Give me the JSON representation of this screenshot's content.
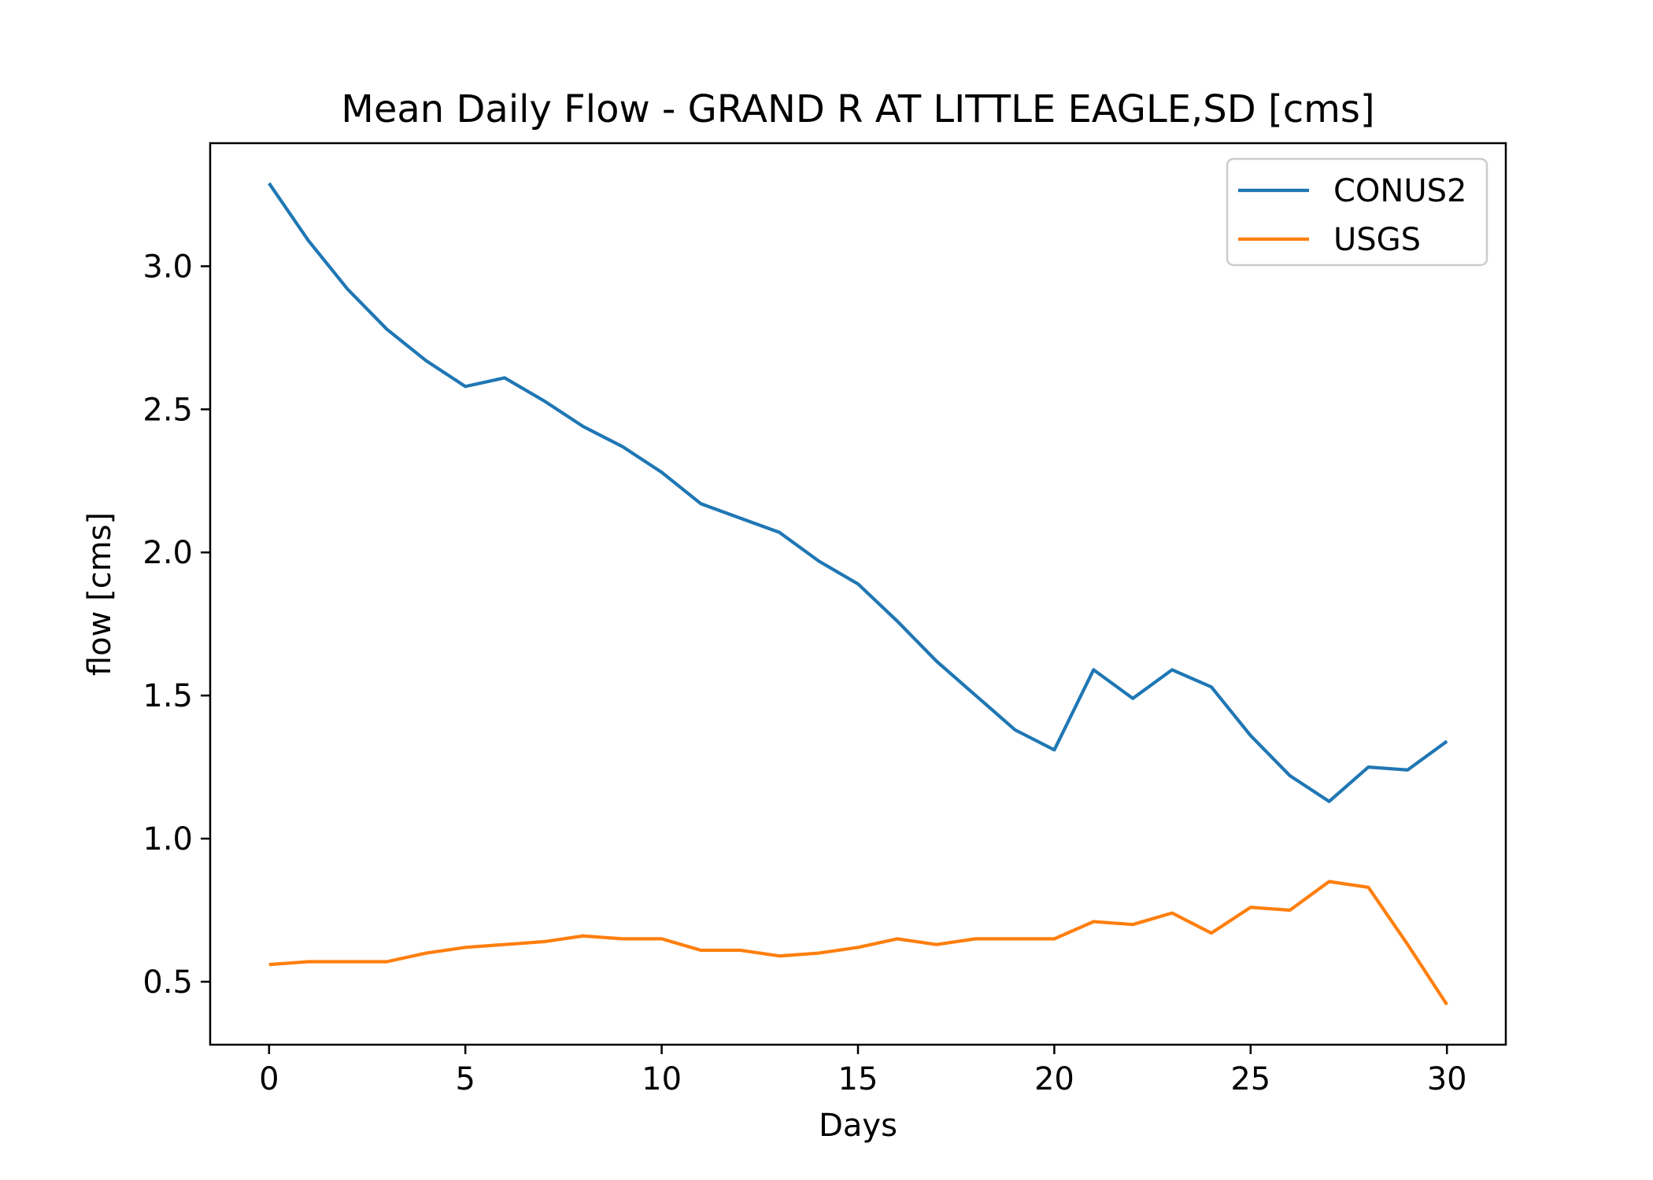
{
  "chart_data": {
    "type": "line",
    "title": "Mean Daily Flow - GRAND R AT LITTLE EAGLE,SD [cms]",
    "xlabel": "Days",
    "ylabel": "flow [cms]",
    "xlim": [
      -1.5,
      31.5
    ],
    "ylim": [
      0.28,
      3.43
    ],
    "xticks": [
      0,
      5,
      10,
      15,
      20,
      25,
      30
    ],
    "xtick_labels": [
      "0",
      "5",
      "10",
      "15",
      "20",
      "25",
      "30"
    ],
    "yticks": [
      0.5,
      1.0,
      1.5,
      2.0,
      2.5,
      3.0
    ],
    "ytick_labels": [
      "0.5",
      "1.0",
      "1.5",
      "2.0",
      "2.5",
      "3.0"
    ],
    "grid": false,
    "legend_position": "upper right",
    "x": [
      0,
      1,
      2,
      3,
      4,
      5,
      6,
      7,
      8,
      9,
      10,
      11,
      12,
      13,
      14,
      15,
      16,
      17,
      18,
      19,
      20,
      21,
      22,
      23,
      24,
      25,
      26,
      27,
      28,
      29,
      30
    ],
    "series": [
      {
        "name": "CONUS2",
        "color": "#1f77b4",
        "values": [
          3.29,
          3.09,
          2.92,
          2.78,
          2.67,
          2.58,
          2.61,
          2.53,
          2.44,
          2.37,
          2.28,
          2.17,
          2.12,
          2.07,
          1.97,
          1.89,
          1.76,
          1.62,
          1.5,
          1.38,
          1.31,
          1.59,
          1.49,
          1.59,
          1.53,
          1.36,
          1.22,
          1.13,
          1.25,
          1.24,
          1.34
        ]
      },
      {
        "name": "USGS",
        "color": "#ff7f0e",
        "values": [
          0.56,
          0.57,
          0.57,
          0.57,
          0.6,
          0.62,
          0.63,
          0.64,
          0.66,
          0.65,
          0.65,
          0.61,
          0.61,
          0.59,
          0.6,
          0.62,
          0.65,
          0.63,
          0.65,
          0.65,
          0.65,
          0.71,
          0.7,
          0.74,
          0.67,
          0.76,
          0.75,
          0.85,
          0.83,
          0.63,
          0.42
        ]
      }
    ]
  }
}
